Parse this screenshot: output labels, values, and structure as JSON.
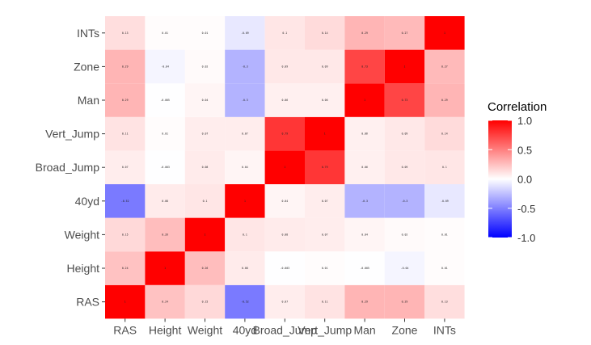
{
  "chart_data": {
    "type": "heatmap",
    "x_labels": [
      "RAS",
      "Height",
      "Weight",
      "40yd",
      "Broad_Jump",
      "Vert_Jump",
      "Man",
      "Zone",
      "INTs"
    ],
    "y_labels": [
      "RAS",
      "Height",
      "Weight",
      "40yd",
      "Broad_Jump",
      "Vert_Jump",
      "Man",
      "Zone",
      "INTs"
    ],
    "matrix": [
      [
        1.0,
        0.24,
        0.15,
        -0.52,
        0.07,
        0.11,
        0.29,
        0.29,
        0.13
      ],
      [
        0.24,
        1.0,
        0.26,
        0.08,
        -0.003,
        0.01,
        -0.005,
        -0.04,
        0.01
      ],
      [
        0.15,
        0.26,
        1.0,
        0.1,
        0.08,
        0.07,
        0.04,
        0.02,
        0.01
      ],
      [
        -0.52,
        0.08,
        0.1,
        1.0,
        0.04,
        0.07,
        -0.3,
        -0.3,
        -0.09
      ],
      [
        0.07,
        -0.003,
        0.08,
        0.04,
        1.0,
        0.79,
        0.06,
        0.09,
        0.1
      ],
      [
        0.11,
        0.01,
        0.07,
        0.07,
        0.79,
        1.0,
        0.06,
        0.09,
        0.14
      ],
      [
        0.29,
        -0.005,
        0.04,
        -0.3,
        0.06,
        0.06,
        1.0,
        0.73,
        0.29
      ],
      [
        0.29,
        -0.04,
        0.02,
        -0.3,
        0.09,
        0.09,
        0.73,
        1.0,
        0.27
      ],
      [
        0.13,
        0.01,
        0.01,
        -0.09,
        0.1,
        0.14,
        0.29,
        0.27,
        1.0
      ]
    ],
    "legend": {
      "title": "Correlation",
      "ticks": [
        1.0,
        0.5,
        0.0,
        -0.5,
        -1.0
      ],
      "tick_labels": [
        "1.0",
        "0.5",
        "0.0",
        "-0.5",
        "-1.0"
      ],
      "placement": "right"
    },
    "color_scale": {
      "low": "#0000ff",
      "mid": "#ffffff",
      "high": "#ff0000",
      "limits": [
        -1,
        1
      ]
    },
    "grid": false
  }
}
